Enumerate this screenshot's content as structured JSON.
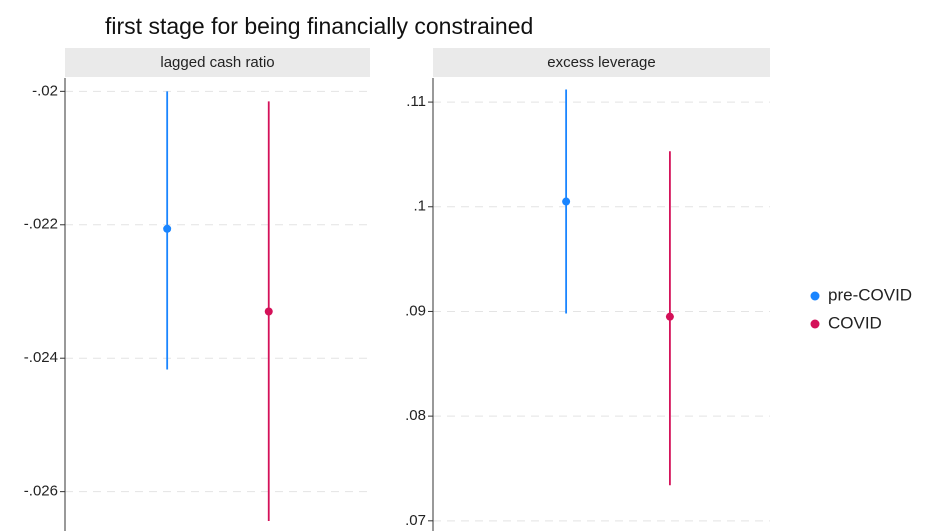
{
  "title": "first stage for being financially constrained",
  "chart_data": [
    {
      "type": "errorbar",
      "title": "lagged cash ratio",
      "ylim": [
        -0.0265,
        -0.0198
      ],
      "yticks": [
        {
          "value": -0.02,
          "label": "-.02"
        },
        {
          "value": -0.022,
          "label": "-.022"
        },
        {
          "value": -0.024,
          "label": "-.024"
        },
        {
          "value": -0.026,
          "label": "-.026"
        }
      ],
      "grid": true,
      "series": [
        {
          "name": "pre-COVID",
          "color": "#1a85ff",
          "values": [
            -0.02206
          ],
          "lower": [
            -0.02417
          ],
          "upper": [
            -0.02
          ]
        },
        {
          "name": "COVID",
          "color": "#d41159",
          "values": [
            -0.0233
          ],
          "lower": [
            -0.02644
          ],
          "upper": [
            -0.02015
          ]
        }
      ]
    },
    {
      "type": "errorbar",
      "title": "excess leverage",
      "ylim": [
        0.0696,
        0.1123
      ],
      "yticks": [
        {
          "value": 0.11,
          "label": ".11"
        },
        {
          "value": 0.1,
          "label": ".1"
        },
        {
          "value": 0.09,
          "label": ".09"
        },
        {
          "value": 0.08,
          "label": ".08"
        },
        {
          "value": 0.07,
          "label": ".07"
        }
      ],
      "grid": true,
      "series": [
        {
          "color": "#1a85ff",
          "values": [
            0.1005
          ],
          "lower": [
            0.0898
          ],
          "upper": [
            0.1112
          ]
        },
        {
          "color": "#d41159",
          "values": [
            0.0895
          ],
          "lower": [
            0.0734
          ],
          "upper": [
            0.1053
          ]
        }
      ]
    }
  ]
}
